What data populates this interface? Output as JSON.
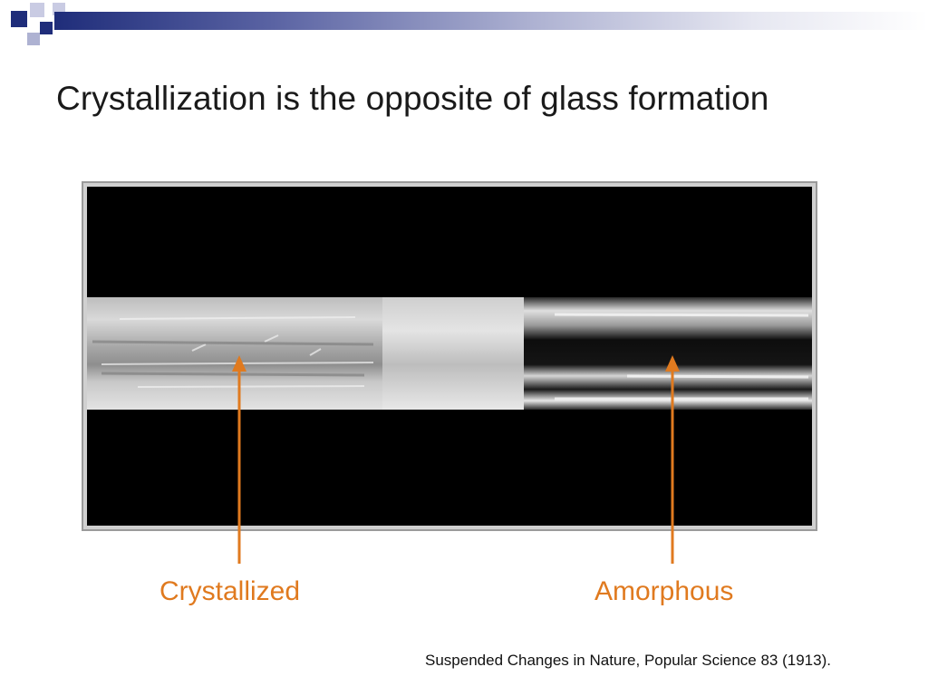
{
  "slide": {
    "title": "Crystallization is the opposite of glass formation",
    "labels": {
      "left": "Crystallized",
      "right": "Amorphous"
    },
    "caption": "Suspended Changes in Nature, Popular Science 83 (1913).",
    "colors": {
      "accent": "#e07a1f",
      "header_bar": "#1f2d7a",
      "text": "#1a1a1a"
    }
  }
}
